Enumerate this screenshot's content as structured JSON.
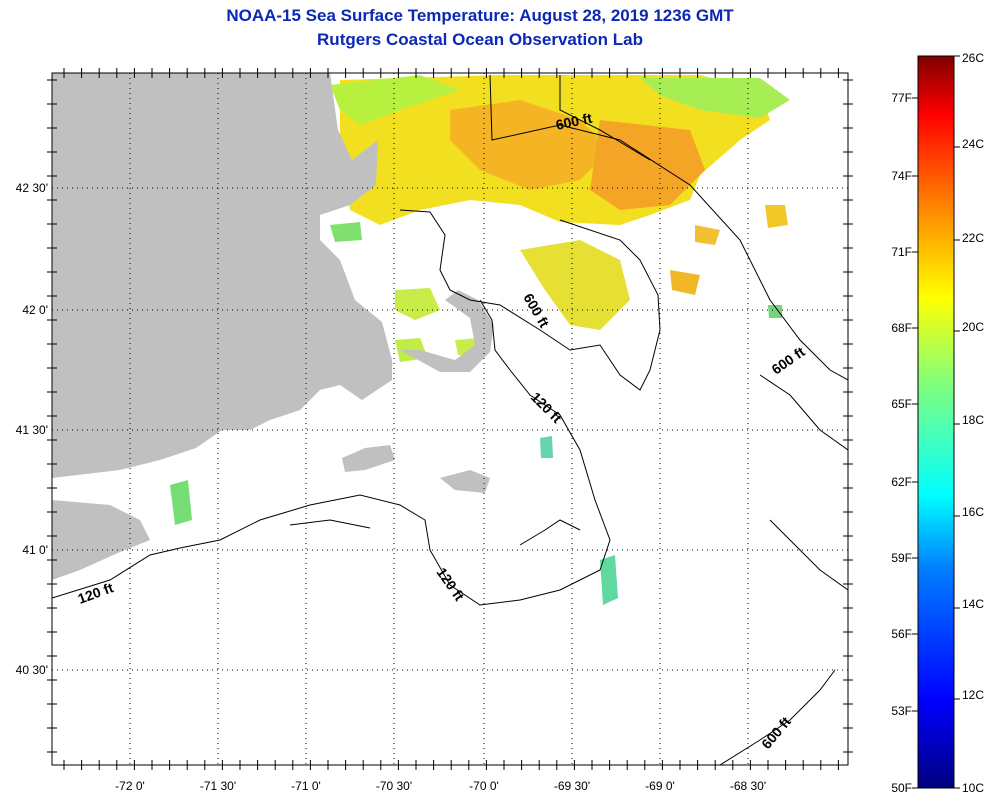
{
  "title": {
    "line1": "NOAA-15 Sea Surface Temperature:  August 28, 2019 1236 GMT",
    "line2": "Rutgers Coastal Ocean Observation Lab"
  },
  "map": {
    "lon_labels": [
      "-72 0'",
      "-71 30'",
      "-71 0'",
      "-70 30'",
      "-70 0'",
      "-69 30'",
      "-69 0'",
      "-68 30'"
    ],
    "lat_labels": [
      "42 30'",
      "42 0'",
      "41 30'",
      "41 0'",
      "40 30'"
    ],
    "contour_labels": [
      {
        "text": "600 ft"
      },
      {
        "text": "600 ft"
      },
      {
        "text": "600 ft"
      },
      {
        "text": "600 ft"
      },
      {
        "text": "120 ft"
      },
      {
        "text": "120 ft"
      },
      {
        "text": "120 ft"
      }
    ],
    "land_color": "#c0c0c0"
  },
  "colorbar": {
    "celsius_labels": [
      "26C",
      "24C",
      "22C",
      "20C",
      "18C",
      "16C",
      "14C",
      "12C",
      "10C"
    ],
    "fahrenheit_labels": [
      "77F",
      "74F",
      "71F",
      "68F",
      "65F",
      "62F",
      "59F",
      "56F",
      "53F",
      "50F"
    ],
    "colors": [
      "#00007f",
      "#0000ff",
      "#007fff",
      "#00ffff",
      "#7fff7f",
      "#ffff00",
      "#ff7f00",
      "#ff0000",
      "#7f0000"
    ]
  }
}
